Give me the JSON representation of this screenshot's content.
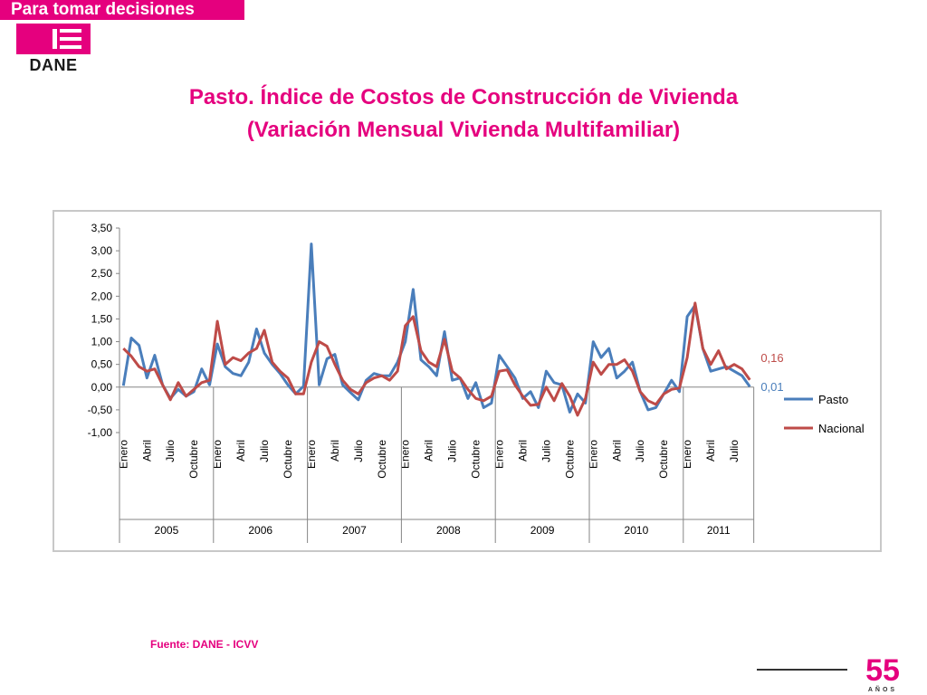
{
  "header": {
    "banner_text": "Para tomar decisiones",
    "logo_text": "DANE",
    "brand_color": "#e5007e"
  },
  "title": {
    "line1": "Pasto. Índice de Costos de Construcción de Vivienda",
    "line2": "(Variación Mensual Vivienda Multifamiliar)"
  },
  "footer": {
    "source": "Fuente: DANE - ICVV",
    "anniversary": "55",
    "anniversary_sub": "AÑOS"
  },
  "chart_data": {
    "type": "line",
    "title": "",
    "xlabel": "",
    "ylabel": "",
    "ylim": [
      -1.0,
      3.5
    ],
    "yticks": [
      "3,50",
      "3,00",
      "2,50",
      "2,00",
      "1,50",
      "1,00",
      "0,50",
      "0,00",
      "-0,50",
      "-1,00"
    ],
    "grid": false,
    "legend": "right",
    "years": [
      "2005",
      "2006",
      "2007",
      "2008",
      "2009",
      "2010",
      "2011"
    ],
    "month_labels": [
      "Enero",
      "Abril",
      "Julio",
      "Octubre"
    ],
    "months_2011": 9,
    "series": [
      {
        "name": "Pasto",
        "color": "#4a7ebb",
        "end_label": "0,01",
        "values": [
          0.03,
          1.08,
          0.92,
          0.2,
          0.7,
          0.05,
          -0.25,
          -0.05,
          -0.2,
          -0.1,
          0.4,
          0.05,
          0.95,
          0.45,
          0.3,
          0.25,
          0.55,
          1.28,
          0.75,
          0.5,
          0.3,
          0.05,
          -0.15,
          0.02,
          3.15,
          0.05,
          0.62,
          0.72,
          0.05,
          -0.12,
          -0.28,
          0.15,
          0.3,
          0.25,
          0.25,
          0.55,
          1.0,
          2.15,
          0.6,
          0.45,
          0.25,
          1.22,
          0.15,
          0.2,
          -0.25,
          0.1,
          -0.45,
          -0.35,
          0.7,
          0.45,
          0.2,
          -0.25,
          -0.1,
          -0.45,
          0.35,
          0.1,
          0.05,
          -0.55,
          -0.15,
          -0.35,
          1.0,
          0.65,
          0.85,
          0.2,
          0.35,
          0.55,
          -0.1,
          -0.5,
          -0.45,
          -0.15,
          0.15,
          -0.1,
          1.55,
          1.8,
          0.85,
          0.35,
          0.4,
          0.45,
          0.35,
          0.25,
          0.01
        ]
      },
      {
        "name": "Nacional",
        "color": "#be4b48",
        "end_label": "0,16",
        "values": [
          0.85,
          0.68,
          0.45,
          0.35,
          0.4,
          0.05,
          -0.28,
          0.1,
          -0.2,
          -0.05,
          0.1,
          0.15,
          1.45,
          0.5,
          0.65,
          0.58,
          0.75,
          0.85,
          1.25,
          0.55,
          0.35,
          0.2,
          -0.15,
          -0.15,
          0.55,
          1.0,
          0.9,
          0.5,
          0.15,
          -0.05,
          -0.15,
          0.1,
          0.2,
          0.25,
          0.15,
          0.35,
          1.35,
          1.55,
          0.8,
          0.55,
          0.45,
          1.05,
          0.35,
          0.2,
          -0.05,
          -0.25,
          -0.3,
          -0.2,
          0.35,
          0.38,
          0.05,
          -0.2,
          -0.4,
          -0.38,
          0.0,
          -0.3,
          0.08,
          -0.2,
          -0.62,
          -0.25,
          0.55,
          0.28,
          0.5,
          0.5,
          0.6,
          0.35,
          -0.1,
          -0.3,
          -0.38,
          -0.15,
          -0.05,
          -0.02,
          0.65,
          1.85,
          0.85,
          0.5,
          0.8,
          0.4,
          0.5,
          0.4,
          0.16
        ]
      }
    ]
  }
}
